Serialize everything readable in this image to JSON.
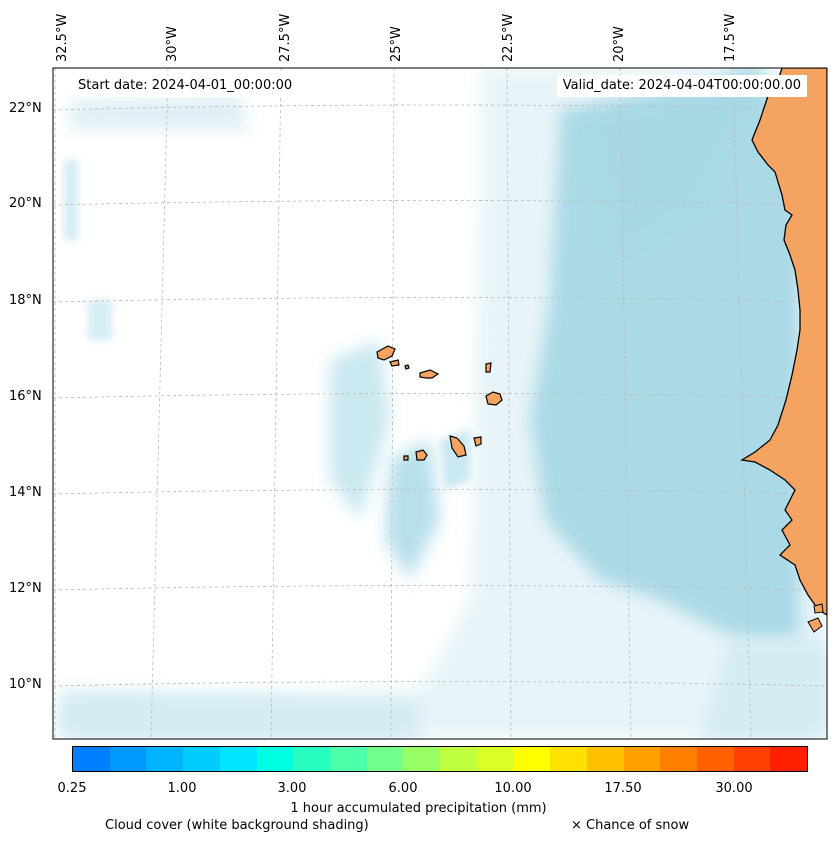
{
  "map": {
    "lon_labels": [
      "32.5°W",
      "30°W",
      "27.5°W",
      "25°W",
      "22.5°W",
      "20°W",
      "17.5°W"
    ],
    "lat_labels": [
      "22°N",
      "20°N",
      "18°N",
      "16°N",
      "14°N",
      "12°N",
      "10°N"
    ],
    "start_date": "Start date: 2024-04-01_00:00:00",
    "valid_date": "Valid_date: 2024-04-04T00:00:00.00",
    "colors": {
      "land": "#f4a460",
      "cloud": "#a8d8e6",
      "coast": "#000000",
      "grid": "#b8b8b8"
    }
  },
  "colorbar": {
    "colors": [
      "#0080ff",
      "#0099ff",
      "#00b3ff",
      "#00ccff",
      "#00e5ff",
      "#00ffe0",
      "#26ffc0",
      "#4dffa8",
      "#73ff8c",
      "#99ff66",
      "#bfff40",
      "#d9ff26",
      "#ffff00",
      "#ffe000",
      "#ffc000",
      "#ffa000",
      "#ff8000",
      "#ff6000",
      "#ff4000",
      "#ff2000"
    ],
    "ticks": [
      "0.25",
      "1.00",
      "3.00",
      "6.00",
      "10.00",
      "17.50",
      "30.00"
    ],
    "label": "1 hour accumulated precipitation (mm)"
  },
  "legend": {
    "cloud_cover": "Cloud cover (white background shading)",
    "snow": "× Chance of snow"
  }
}
